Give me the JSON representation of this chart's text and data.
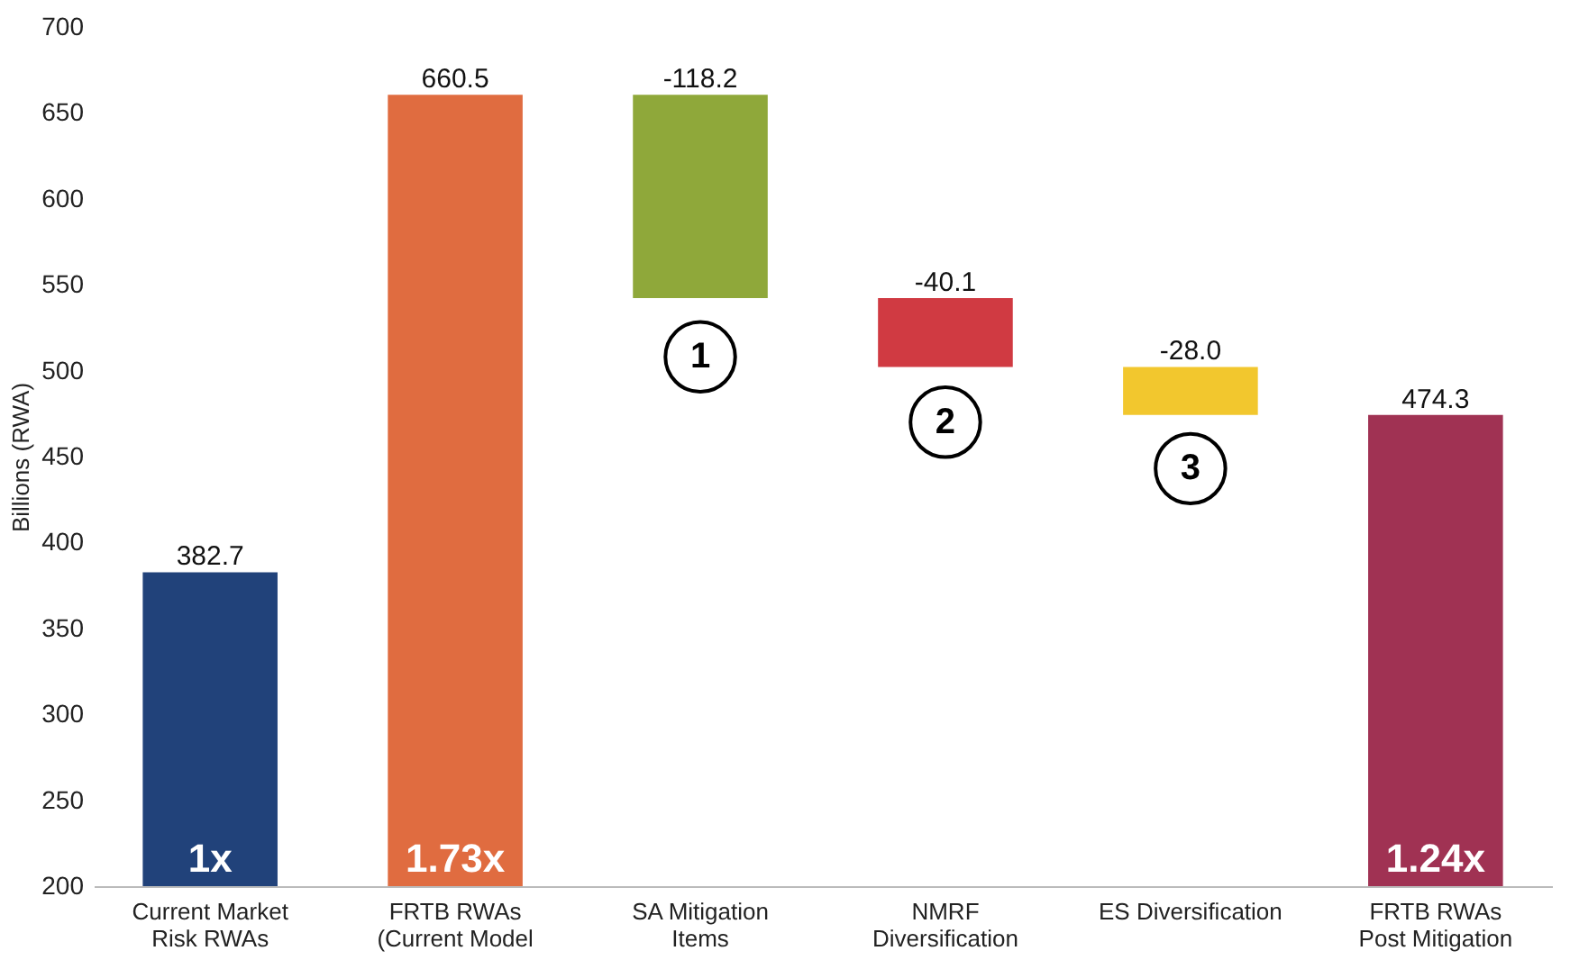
{
  "chart_data": {
    "type": "bar",
    "ylabel": "Billions (RWA)",
    "categories": [
      "Current Market\nRisk RWAs",
      "FRTB RWAs\n(Current Model",
      "SA Mitigation\nItems",
      "NMRF\nDiversification",
      "ES Diversification",
      "FRTB RWAs\nPost Mitigation"
    ],
    "values": [
      382.7,
      660.5,
      -118.2,
      -40.1,
      -28.0,
      474.3
    ],
    "base": [
      null,
      null,
      660.5,
      542.3,
      502.2,
      null
    ],
    "colors": [
      "#21427a",
      "#e06c40",
      "#8fa83a",
      "#d03a42",
      "#f2c72e",
      "#a03253"
    ],
    "value_labels": [
      "382.7",
      "660.5",
      "-118.2",
      "-40.1",
      "-28.0",
      "474.3"
    ],
    "ylim": [
      200,
      700
    ],
    "yticks": [
      200,
      250,
      300,
      350,
      400,
      450,
      500,
      550,
      600,
      650,
      700
    ],
    "grid": false,
    "annotations": [
      "1x",
      "1.73x",
      "1.24x",
      {
        "text": "1",
        "x": "SA Mitigation\nItems",
        "y": 508
      },
      {
        "text": "2",
        "x": "NMRF\nDiversification",
        "y": 470
      },
      {
        "text": "3",
        "x": "ES Diversification",
        "y": 443
      }
    ]
  }
}
